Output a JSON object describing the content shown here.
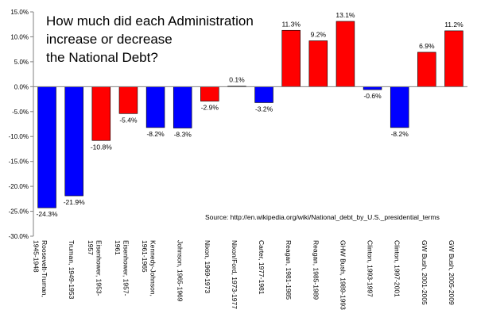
{
  "chart_data": {
    "type": "bar",
    "title_lines": [
      "How much did each Administration",
      "increase or decrease",
      "the National Debt?"
    ],
    "source": "Source: http://en.wikipedia.org/wiki/National_debt_by_U.S._presidential_terms",
    "ylim": [
      -30,
      15
    ],
    "y_ticks": [
      15,
      10,
      5,
      0,
      -5,
      -10,
      -15,
      -20,
      -25,
      -30
    ],
    "y_tick_labels": [
      "15.0%",
      "10.0%",
      "5.0%",
      "0.0%",
      "-5.0%",
      "-10.0%",
      "-15.0%",
      "-20.0%",
      "-25.0%",
      "-30.0%"
    ],
    "grid": false,
    "legend": "none",
    "categories": [
      [
        "Roosevelt-Truman,",
        "1945-1948"
      ],
      [
        "Truman, 1949-1953"
      ],
      [
        "Eisenhower, 1953-",
        "1957"
      ],
      [
        "Eisenhower, 1957-",
        "1961"
      ],
      [
        "Kennedy-Johnson,",
        "1961-1965"
      ],
      [
        "Johnson, 1965-1969"
      ],
      [
        "Nixon, 1969-1973"
      ],
      [
        "Nixon/Ford, 1973-1977"
      ],
      [
        "Carter, 1977-1981"
      ],
      [
        "Reagan, 1981-1985"
      ],
      [
        "Reagan, 1985-1989"
      ],
      [
        "GHW Bush, 1989-1993"
      ],
      [
        "Clinton, 1993-1997"
      ],
      [
        "Clinton, 1997-2001"
      ],
      [
        "GW Bush, 2001-2005"
      ],
      [
        "GW Bush, 2005-2009"
      ]
    ],
    "values": [
      -24.3,
      -21.9,
      -10.8,
      -5.4,
      -8.2,
      -8.3,
      -2.9,
      0.1,
      -3.2,
      11.3,
      9.2,
      13.1,
      -0.6,
      -8.2,
      6.9,
      11.2
    ],
    "value_labels": [
      "-24.3%",
      "-21.9%",
      "-10.8%",
      "-5.4%",
      "-8.2%",
      "-8.3%",
      "-2.9%",
      "0.1%",
      "-3.2%",
      "11.3%",
      "9.2%",
      "13.1%",
      "-0.6%",
      "-8.2%",
      "6.9%",
      "11.2%"
    ],
    "party": [
      "D",
      "D",
      "R",
      "R",
      "D",
      "D",
      "R",
      "R",
      "D",
      "R",
      "R",
      "R",
      "D",
      "D",
      "R",
      "R"
    ],
    "colors": {
      "D": "#0000ff",
      "R": "#ff0000",
      "axis": "#808080",
      "bar_edge": "#000000"
    }
  }
}
